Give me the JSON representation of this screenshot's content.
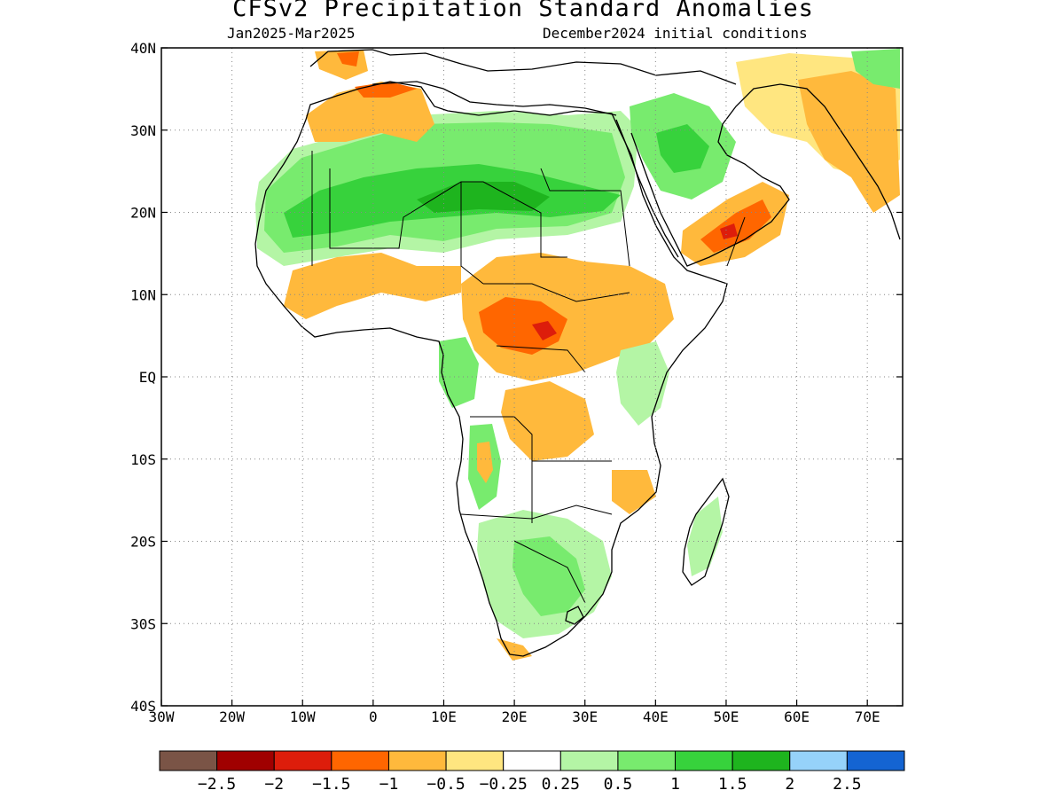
{
  "title": "CFSv2 Precipitation Standard Anomalies",
  "subtitle_left": "Jan2025-Mar2025",
  "subtitle_right": "December2024 initial conditions",
  "map": {
    "lon_range": [
      -30,
      75
    ],
    "lat_range": [
      -40,
      40
    ],
    "x_ticks": [
      {
        "lon": -30,
        "label": "30W"
      },
      {
        "lon": -20,
        "label": "20W"
      },
      {
        "lon": -10,
        "label": "10W"
      },
      {
        "lon": 0,
        "label": "0"
      },
      {
        "lon": 10,
        "label": "10E"
      },
      {
        "lon": 20,
        "label": "20E"
      },
      {
        "lon": 30,
        "label": "30E"
      },
      {
        "lon": 40,
        "label": "40E"
      },
      {
        "lon": 50,
        "label": "50E"
      },
      {
        "lon": 60,
        "label": "60E"
      },
      {
        "lon": 70,
        "label": "70E"
      }
    ],
    "y_ticks": [
      {
        "lat": 40,
        "label": "40N"
      },
      {
        "lat": 30,
        "label": "30N"
      },
      {
        "lat": 20,
        "label": "20N"
      },
      {
        "lat": 10,
        "label": "10N"
      },
      {
        "lat": 0,
        "label": "EQ"
      },
      {
        "lat": -10,
        "label": "10S"
      },
      {
        "lat": -20,
        "label": "20S"
      },
      {
        "lat": -30,
        "label": "30S"
      },
      {
        "lat": -40,
        "label": "40S"
      }
    ],
    "grid": "dotted"
  },
  "colorbar": {
    "colors": [
      "#7a5446",
      "#a00000",
      "#dd1d0b",
      "#ff6600",
      "#ffb93c",
      "#ffe680",
      "#ffffff",
      "#b4f5a5",
      "#78eb6e",
      "#37d23c",
      "#1eb41e",
      "#96d2fa",
      "#1464d2"
    ],
    "labels": [
      "-2.5",
      "-2",
      "-1.5",
      "-1",
      "-0.5",
      "-0.25",
      "0.25",
      "0.5",
      "1",
      "1.5",
      "2",
      "2.5"
    ]
  },
  "anomaly_regions": [
    {
      "name": "sahel-wet",
      "level": 1,
      "color": "#78eb6e"
    },
    {
      "name": "sahel-wet-core",
      "level": 1.5,
      "color": "#37d23c"
    },
    {
      "name": "central-africa-dry",
      "level": -1,
      "color": "#ffb93c"
    },
    {
      "name": "central-africa-dry-core",
      "level": -1.5,
      "color": "#ff6600"
    },
    {
      "name": "yemen-oman-dry",
      "level": -1.5,
      "color": "#ff6600"
    },
    {
      "name": "southern-africa-wet",
      "level": 0.5,
      "color": "#b4f5a5"
    }
  ]
}
